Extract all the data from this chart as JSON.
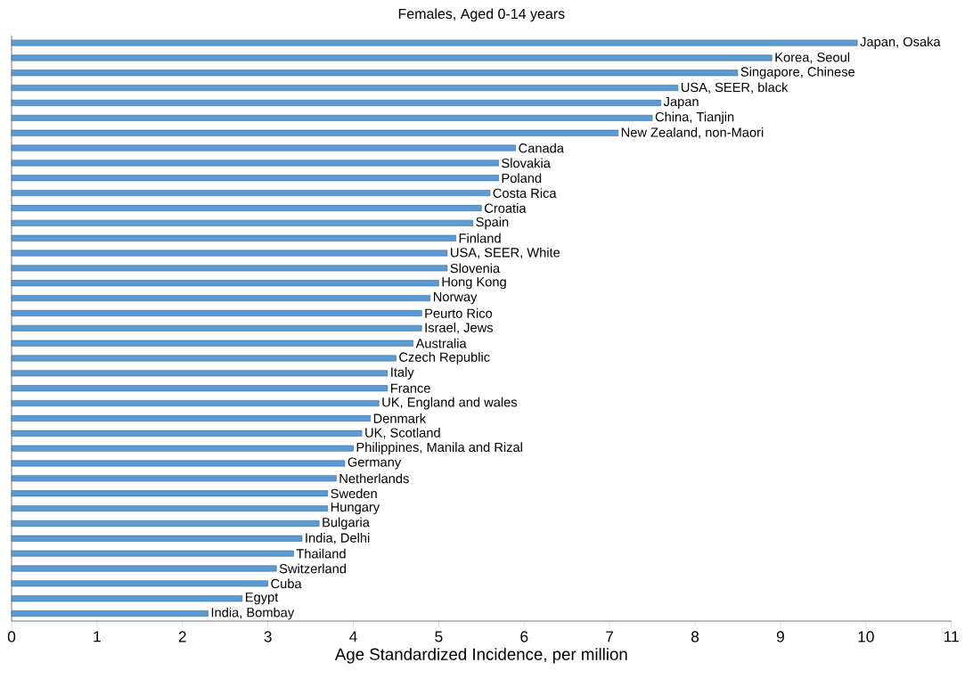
{
  "chart_data": {
    "type": "bar",
    "orientation": "horizontal",
    "title": "Females, Aged 0-14 years",
    "xlabel": "Age Standardized Incidence, per million",
    "categories": [
      "Japan, Osaka",
      "Korea, Seoul",
      "Singapore, Chinese",
      "USA, SEER, black",
      "Japan",
      "China, Tianjin",
      "New Zealand, non-Maori",
      "Canada",
      "Slovakia",
      "Poland",
      "Costa Rica",
      "Croatia",
      "Spain",
      "Finland",
      "USA, SEER, White",
      "Slovenia",
      "Hong Kong",
      "Norway",
      "Peurto Rico",
      "Israel, Jews",
      "Australia",
      "Czech Republic",
      "Italy",
      "France",
      "UK, England and wales",
      "Denmark",
      "UK, Scotland",
      "Philippines, Manila and Rizal",
      "Germany",
      "Netherlands",
      "Sweden",
      "Hungary",
      "Bulgaria",
      "India, Delhi",
      "Thailand",
      "Switzerland",
      "Cuba",
      "Egypt",
      "India, Bombay"
    ],
    "values": [
      9.9,
      8.9,
      8.5,
      7.8,
      7.6,
      7.5,
      7.1,
      5.9,
      5.7,
      5.7,
      5.6,
      5.5,
      5.4,
      5.2,
      5.1,
      5.1,
      5.0,
      4.9,
      4.8,
      4.8,
      4.7,
      4.5,
      4.4,
      4.4,
      4.3,
      4.2,
      4.1,
      4.0,
      3.9,
      3.8,
      3.7,
      3.7,
      3.6,
      3.4,
      3.3,
      3.1,
      3.0,
      2.7,
      2.3
    ],
    "color": "#5b9bd5",
    "xlim": [
      0,
      11
    ],
    "xticks": [
      0,
      1,
      2,
      3,
      4,
      5,
      6,
      7,
      8,
      9,
      10,
      11
    ]
  }
}
